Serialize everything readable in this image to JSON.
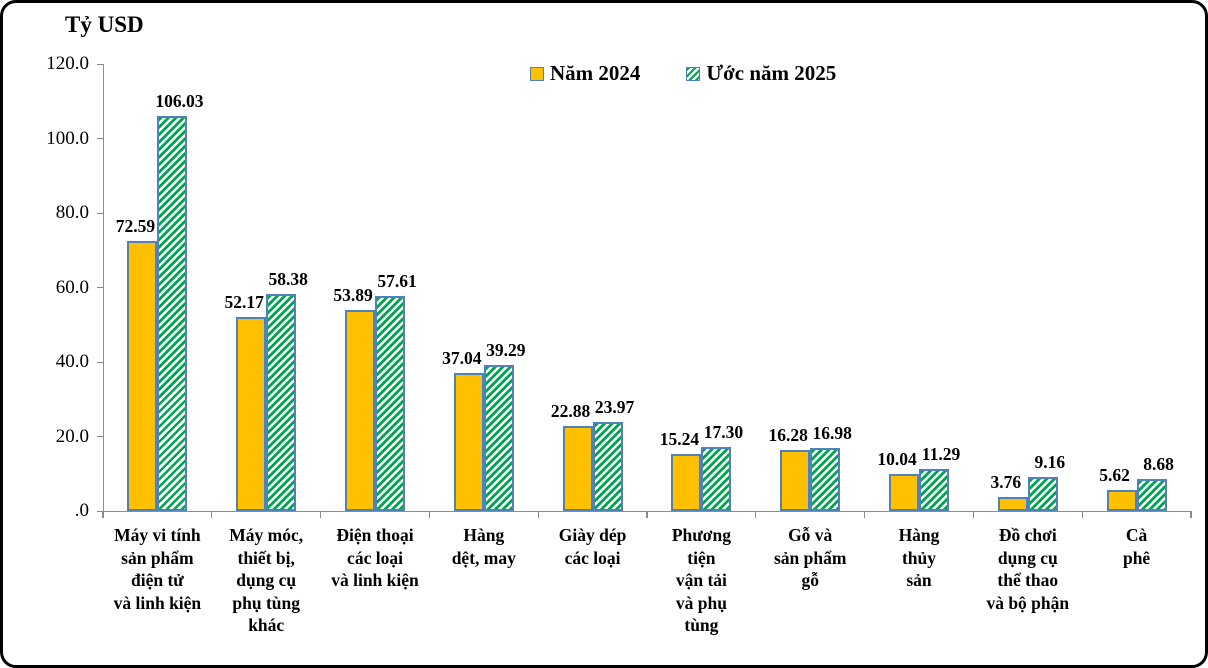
{
  "title": "Tỷ USD",
  "legend": [
    {
      "label": "Năm 2024",
      "swatch": "solid-yellow-square"
    },
    {
      "label": "Ước năm 2025",
      "swatch": "green-hatched-square"
    }
  ],
  "colors": {
    "bar_2024_fill": "#FFC000",
    "bar_border": "#4F81BD",
    "hatch_green": "#00A550",
    "axis_line": "#8C8C8C",
    "text": "#000000",
    "frame_border": "#000000",
    "background": "#FFFFFF"
  },
  "chart_data": {
    "type": "bar",
    "title": "Tỷ USD",
    "ylabel": "Tỷ USD",
    "ylim": [
      0,
      120
    ],
    "yticks": [
      120,
      100,
      80,
      60,
      40,
      20,
      0
    ],
    "ytick_labels": [
      "120.0",
      "100.0",
      "80.0",
      "60.0",
      "40.0",
      "20.0",
      ".0"
    ],
    "grid": false,
    "legend_position": "top-center",
    "categories": [
      "Máy vi tính sản phẩm điện tử và linh kiện",
      "Máy móc, thiết bị, dụng cụ phụ tùng khác",
      "Điện thoại các loại và linh kiện",
      "Hàng dệt, may",
      "Giày dép các loại",
      "Phương tiện vận tải và phụ tùng",
      "Gỗ và sản phẩm gỗ",
      "Hàng thủy sản",
      "Đồ chơi dụng cụ thể thao và bộ phận",
      "Cà phê"
    ],
    "category_lines": [
      [
        "Máy vi tính",
        "sản phẩm",
        "điện tử",
        "và linh kiện"
      ],
      [
        "Máy móc,",
        "thiết bị,",
        "dụng cụ",
        "phụ tùng",
        "khác"
      ],
      [
        "Điện thoại",
        "các loại",
        "và linh kiện"
      ],
      [
        "Hàng",
        "dệt, may"
      ],
      [
        "Giày dép",
        "các loại"
      ],
      [
        "Phương",
        "tiện",
        "vận tải",
        "và phụ",
        "tùng"
      ],
      [
        "Gỗ và",
        "sản phẩm",
        "gỗ"
      ],
      [
        "Hàng",
        "thủy",
        "sản"
      ],
      [
        "Đồ chơi",
        "dụng cụ",
        "thể thao",
        "và bộ phận"
      ],
      [
        "Cà",
        "phê"
      ]
    ],
    "series": [
      {
        "name": "Năm 2024",
        "values": [
          72.59,
          52.17,
          53.89,
          37.04,
          22.88,
          15.24,
          16.28,
          10.04,
          3.76,
          5.62
        ]
      },
      {
        "name": "Ước năm 2025",
        "values": [
          106.03,
          58.38,
          57.61,
          39.29,
          23.97,
          17.3,
          16.98,
          11.29,
          9.16,
          8.68
        ]
      }
    ]
  }
}
